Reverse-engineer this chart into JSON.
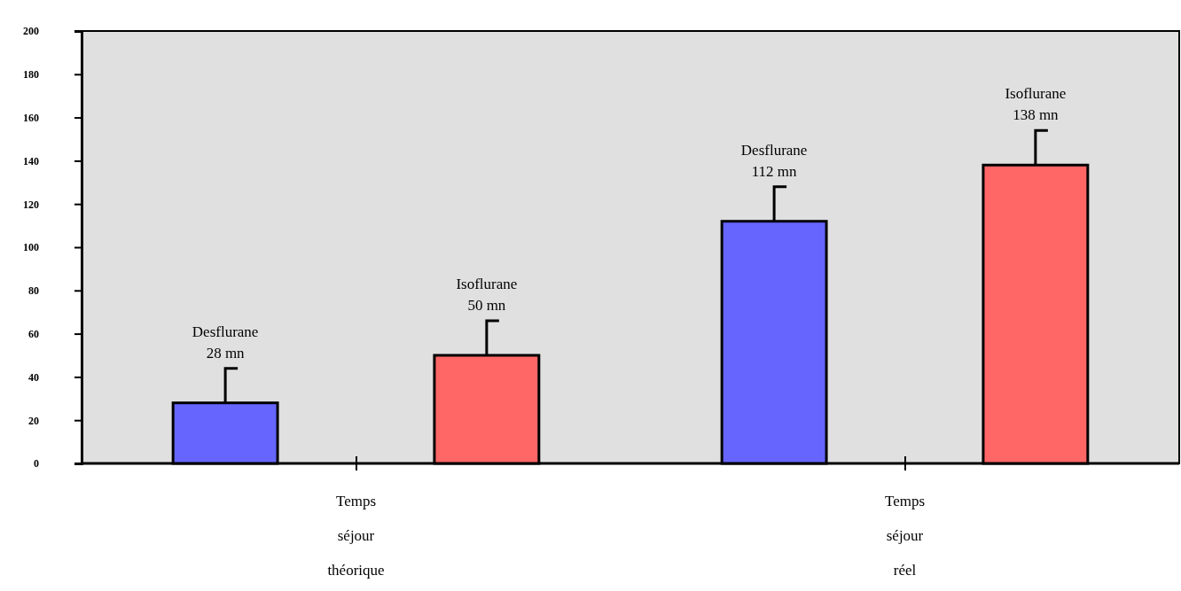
{
  "chart_data": {
    "type": "bar",
    "categories": [
      "Temps séjour théorique",
      "Temps séjour réel"
    ],
    "series": [
      {
        "color": "#6666ff",
        "values": [
          28,
          112
        ],
        "errors": [
          [
            28,
            44
          ],
          [
            112,
            128
          ]
        ],
        "value_labels": [
          "28 mn",
          "112 mn"
        ]
      },
      {
        "color": "#ff6666",
        "values": [
          50,
          138
        ],
        "errors": [
          [
            50,
            66
          ],
          [
            138,
            154
          ]
        ],
        "value_labels": [
          "50 mn",
          "138 mn"
        ]
      }
    ],
    "annotations": [
      "Desflurane",
      "Isoflurane",
      "Desflurane",
      "Isoflurane"
    ],
    "ylim": [
      0,
      200
    ],
    "yticks": [
      0,
      20,
      40,
      60,
      80,
      100,
      120,
      140,
      160,
      180,
      200
    ],
    "grid": false,
    "legend": false
  }
}
